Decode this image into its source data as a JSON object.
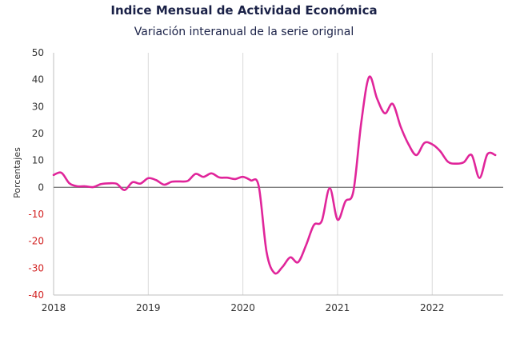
{
  "chart_data": {
    "type": "line",
    "title": "Indice Mensual de  Actividad Económica",
    "subtitle": "Variación interanual de la serie original",
    "xlabel": "",
    "ylabel": "Porcentajes",
    "ylim": [
      -40,
      50
    ],
    "yticks": [
      50,
      40,
      30,
      20,
      10,
      0,
      -10,
      -20,
      -30,
      -40
    ],
    "xlim": [
      2018.0,
      2022.75
    ],
    "xticks": [
      "2018",
      "2019",
      "2020",
      "2021",
      "2022"
    ],
    "grid": "vertical",
    "colors": {
      "line": "#e0259a",
      "negative_ticks": "#d22020",
      "title": "#1a2147"
    },
    "series": [
      {
        "x": [
          2018.0,
          2018.083,
          2018.167,
          2018.25,
          2018.333,
          2018.417,
          2018.5,
          2018.583,
          2018.667,
          2018.75,
          2018.833,
          2018.917,
          2019.0,
          2019.083,
          2019.167,
          2019.25,
          2019.333,
          2019.417,
          2019.5,
          2019.583,
          2019.667,
          2019.75,
          2019.833,
          2019.917,
          2020.0,
          2020.083,
          2020.167,
          2020.25,
          2020.333,
          2020.417,
          2020.5,
          2020.583,
          2020.667,
          2020.75,
          2020.833,
          2020.917,
          2021.0,
          2021.083,
          2021.167,
          2021.25,
          2021.333,
          2021.417,
          2021.5,
          2021.583,
          2021.667,
          2021.75,
          2021.833,
          2021.917,
          2022.0,
          2022.083,
          2022.167,
          2022.25,
          2022.333,
          2022.417,
          2022.5,
          2022.583,
          2022.667
        ],
        "values": [
          4.6,
          5.4,
          1.5,
          0.4,
          0.4,
          0.1,
          1.2,
          1.5,
          1.3,
          -1.0,
          1.9,
          1.4,
          3.4,
          2.7,
          1.0,
          2.1,
          2.2,
          2.4,
          5.0,
          3.9,
          5.2,
          3.7,
          3.6,
          3.1,
          3.9,
          2.6,
          0.5,
          -24.0,
          -31.8,
          -29.6,
          -26.0,
          -27.8,
          -21.5,
          -14.0,
          -12.5,
          -0.3,
          -12.0,
          -5.2,
          -1.5,
          24.0,
          41.0,
          33.0,
          27.5,
          31.0,
          22.5,
          16.0,
          12.0,
          16.5,
          16.0,
          13.5,
          9.5,
          8.8,
          9.3,
          12.0,
          3.5,
          12.3,
          12.0
        ]
      }
    ]
  }
}
